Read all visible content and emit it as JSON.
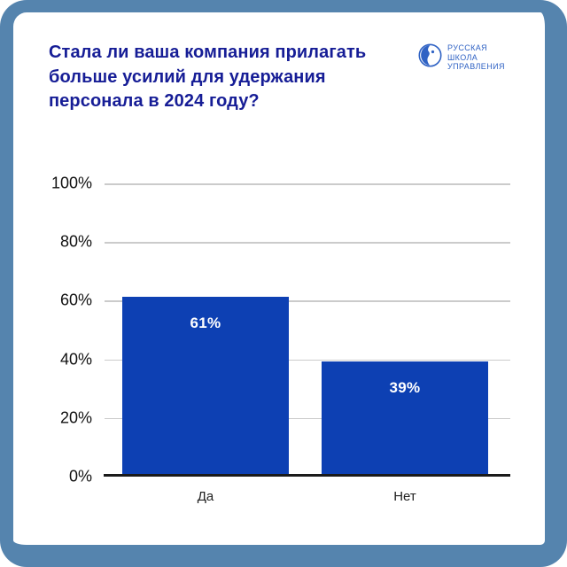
{
  "card": {
    "title_lines": [
      "Стала ли ваша компания прилагать",
      "больше усилий для удержания",
      "персонала в 2024 году?"
    ],
    "logo": {
      "lines": [
        "РУССКАЯ",
        "ШКОЛА",
        "УПРАВЛЕНИЯ"
      ]
    }
  },
  "colors": {
    "frame_border": "#5584ae",
    "title_text": "#161d96",
    "logo_blue": "#2f62c4",
    "bar_fill": "#0d40b3",
    "gridline": "#cbcbcb",
    "axis_line": "#1a1a1a",
    "bar_value_text": "#ffffff",
    "tick_text": "#111111"
  },
  "chart_data": {
    "type": "bar",
    "title": "Стала ли ваша компания прилагать больше усилий для удержания персонала в 2024 году?",
    "categories": [
      "Да",
      "Нет"
    ],
    "values": [
      61,
      39
    ],
    "value_labels": [
      "61%",
      "39%"
    ],
    "xlabel": "",
    "ylabel": "",
    "ylim": [
      0,
      100
    ],
    "yticks": [
      "100%",
      "80%",
      "60%",
      "40%",
      "20%",
      "0%"
    ],
    "grid": true,
    "legend": false
  }
}
